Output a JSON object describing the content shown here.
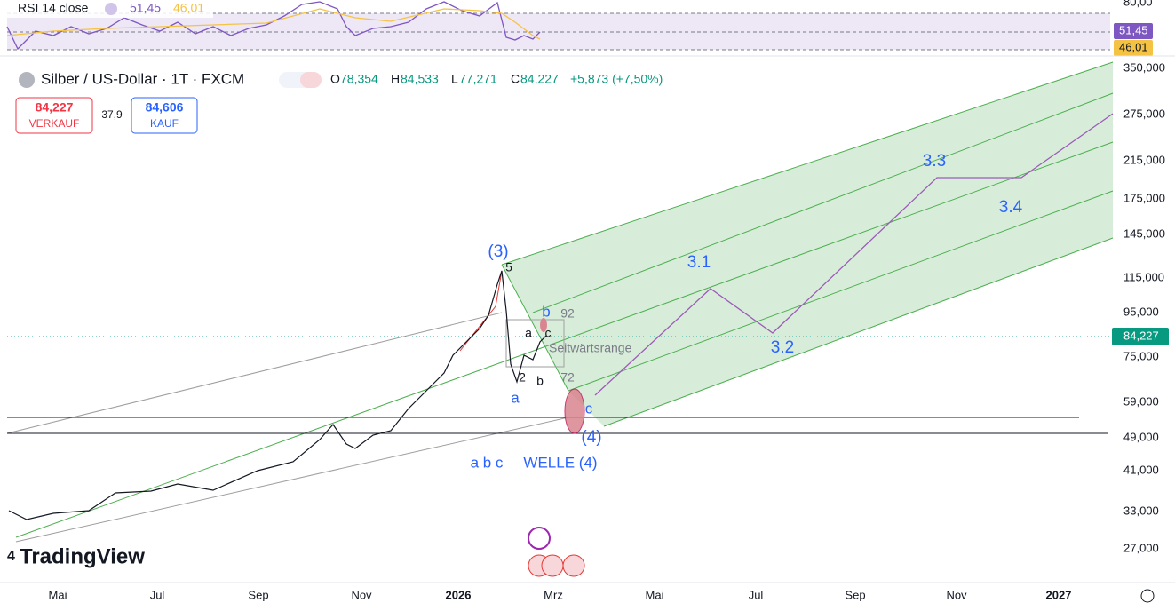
{
  "rsi": {
    "label": "RSI 14 close",
    "value": "51,45",
    "average": "46,01",
    "axis_top": "80,00"
  },
  "header": {
    "symbol": "Silber / US-Dollar · 1T · FXCM",
    "open_label": "O",
    "open": "78,354",
    "high_label": "H",
    "high": "84,533",
    "low_label": "L",
    "low": "77,271",
    "close_label": "C",
    "close": "84,227",
    "change": "+5,873 (+7,50%)"
  },
  "trade": {
    "sell_price": "84,227",
    "sell_label": "VERKAUF",
    "spread": "37,9",
    "buy_price": "84,606",
    "buy_label": "KAUF"
  },
  "price_axis": [
    "350,000",
    "275,000",
    "215,000",
    "175,000",
    "145,000",
    "115,000",
    "95,000",
    "75,000",
    "59,000",
    "49,000",
    "41,000",
    "33,000",
    "27,000"
  ],
  "current_price": "84,227",
  "time_axis": [
    "Mai",
    "Jul",
    "Sep",
    "Nov",
    "2026",
    "Mrz",
    "Mai",
    "Jul",
    "Sep",
    "Nov",
    "2027"
  ],
  "annotations": {
    "w3": "(3)",
    "w5": "5",
    "w31": "3.1",
    "w32": "3.2",
    "w33": "3.3",
    "w34": "3.4",
    "b1": "b",
    "n92": "92",
    "c1": "c",
    "a1": "a",
    "range": "Seitwärtsrange",
    "n72": "72",
    "n2": "2",
    "b2": "b",
    "a2": "a",
    "c2": "c",
    "w4": "(4)",
    "abc": "a b c",
    "welle": "WELLE (4)",
    "n4": "4"
  },
  "logo": "TradingView"
}
